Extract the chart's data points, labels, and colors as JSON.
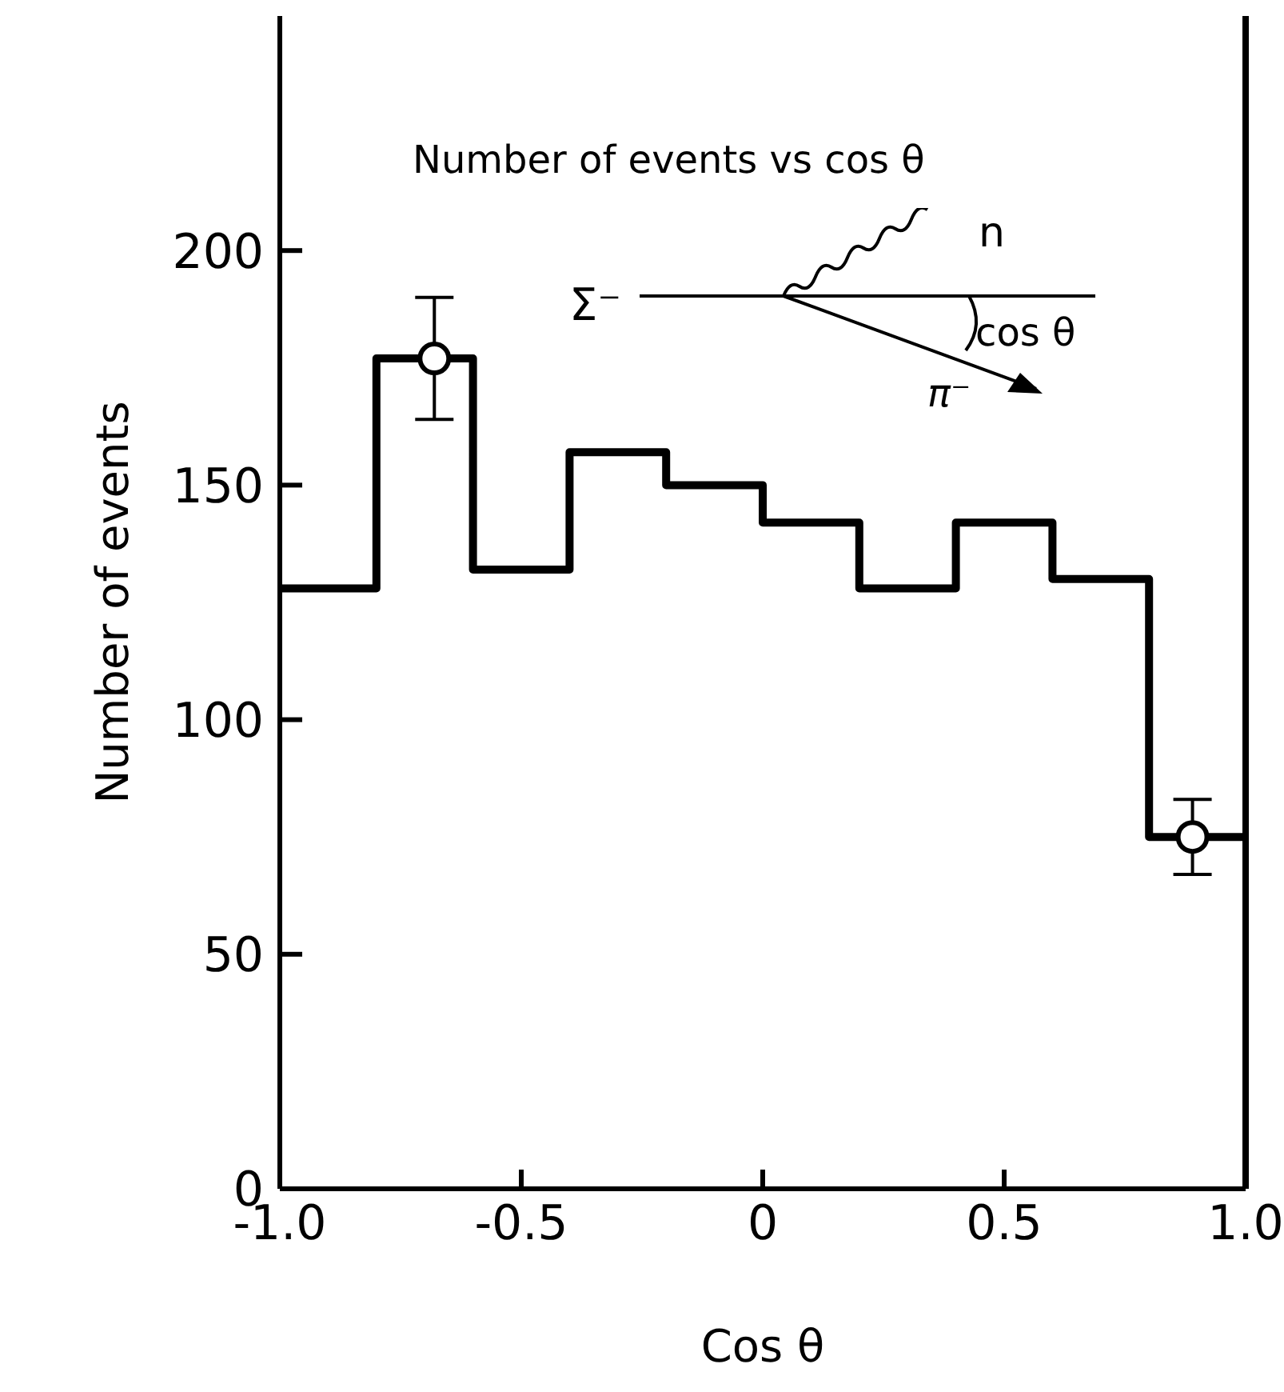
{
  "chart_data": {
    "type": "histogram",
    "title": "Number of events vs cos θ",
    "xlabel": "Cos θ",
    "ylabel": "Number of events",
    "color": "#000000",
    "bins": [
      -1,
      -0.8,
      -0.6,
      -0.4,
      -0.2,
      0,
      0.2,
      0.4,
      0.6,
      0.8,
      1
    ],
    "values": [
      128,
      177,
      132,
      157,
      150,
      142,
      128,
      142,
      130,
      75
    ],
    "series": [
      {
        "type": "scatter",
        "color": "#000000",
        "marker": "circle",
        "x": [
          -0.68,
          0.89
        ],
        "values": [
          177,
          75
        ],
        "errors": [
          [
            164,
            190
          ],
          [
            67,
            83
          ]
        ]
      }
    ],
    "xlim": [
      -1,
      1
    ],
    "xticks": [
      {
        "value": -1,
        "label": "-1.0"
      },
      -0.5,
      0,
      0.5,
      {
        "value": 1,
        "label": "1.0"
      }
    ],
    "ylim": [
      0,
      250
    ],
    "yticks": [
      0,
      50,
      100,
      150,
      200
    ],
    "annotations": [
      "Σ⁻",
      "n",
      "cos θ",
      "π⁻"
    ]
  }
}
